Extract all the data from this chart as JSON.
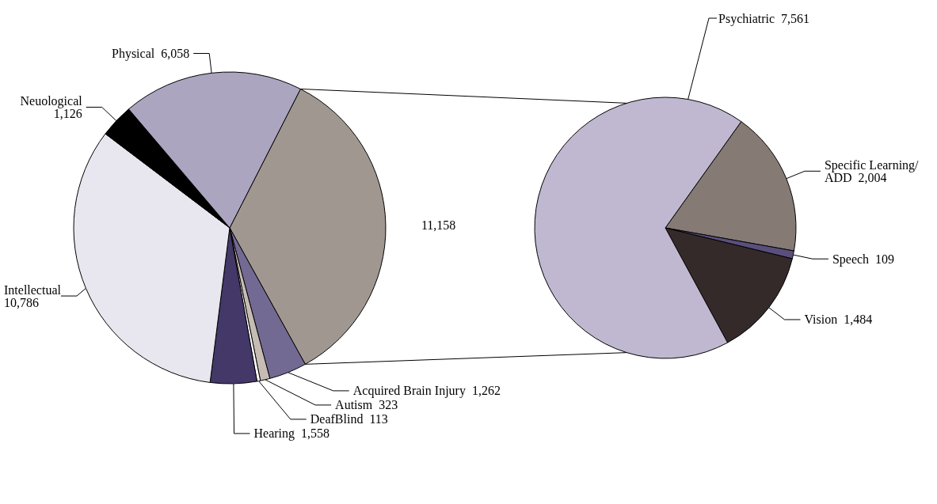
{
  "chart_data": [
    {
      "type": "pie",
      "categories": [
        null,
        "Acquired Brain Injury",
        "Autism",
        "DeafBlind",
        "Hearing",
        "Intellectual",
        "Neuological",
        "Physical"
      ],
      "values": [
        11158,
        1262,
        323,
        113,
        1558,
        10786,
        1126,
        6058
      ],
      "value_labels": [
        "11,158",
        "1,262",
        "323",
        "113",
        "1,558",
        "10,786",
        "1,126",
        "6,058"
      ],
      "colors": [
        "#a09890",
        "#736a93",
        "#c6bcb4",
        "#ffffff",
        "#433868",
        "#e8e6ee",
        "#000000",
        "#aba5c0"
      ]
    },
    {
      "type": "pie",
      "categories": [
        "Specific Learning/ADD",
        "Speech",
        "Vision",
        "Psychiatric"
      ],
      "values": [
        2004,
        109,
        1484,
        7561
      ],
      "value_labels": [
        "2,004",
        "109",
        "1,484",
        "7,561"
      ],
      "colors": [
        "#857a74",
        "#5a4f7c",
        "#352a2a",
        "#c0b8d0"
      ]
    }
  ]
}
